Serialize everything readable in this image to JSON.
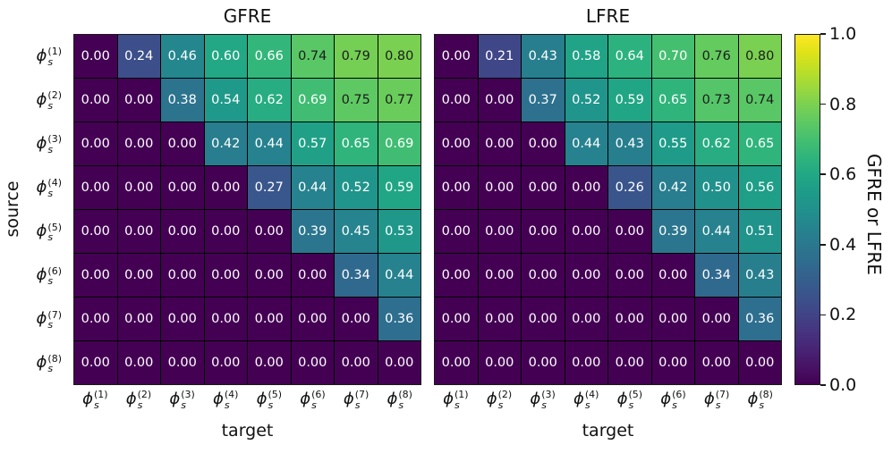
{
  "chart_data": [
    {
      "type": "heatmap",
      "title": "GFRE",
      "xlabel": "target",
      "ylabel": "source",
      "vmin": 0.0,
      "vmax": 1.0,
      "values": [
        [
          0.0,
          0.24,
          0.46,
          0.6,
          0.66,
          0.74,
          0.79,
          0.8
        ],
        [
          0.0,
          0.0,
          0.38,
          0.54,
          0.62,
          0.69,
          0.75,
          0.77
        ],
        [
          0.0,
          0.0,
          0.0,
          0.42,
          0.44,
          0.57,
          0.65,
          0.69
        ],
        [
          0.0,
          0.0,
          0.0,
          0.0,
          0.27,
          0.44,
          0.52,
          0.59
        ],
        [
          0.0,
          0.0,
          0.0,
          0.0,
          0.0,
          0.39,
          0.45,
          0.53
        ],
        [
          0.0,
          0.0,
          0.0,
          0.0,
          0.0,
          0.0,
          0.34,
          0.44
        ],
        [
          0.0,
          0.0,
          0.0,
          0.0,
          0.0,
          0.0,
          0.0,
          0.36
        ],
        [
          0.0,
          0.0,
          0.0,
          0.0,
          0.0,
          0.0,
          0.0,
          0.0
        ]
      ]
    },
    {
      "type": "heatmap",
      "title": "LFRE",
      "xlabel": "target",
      "vmin": 0.0,
      "vmax": 1.0,
      "values": [
        [
          0.0,
          0.21,
          0.43,
          0.58,
          0.64,
          0.7,
          0.76,
          0.8
        ],
        [
          0.0,
          0.0,
          0.37,
          0.52,
          0.59,
          0.65,
          0.73,
          0.74
        ],
        [
          0.0,
          0.0,
          0.0,
          0.44,
          0.43,
          0.55,
          0.62,
          0.65
        ],
        [
          0.0,
          0.0,
          0.0,
          0.0,
          0.26,
          0.42,
          0.5,
          0.56
        ],
        [
          0.0,
          0.0,
          0.0,
          0.0,
          0.0,
          0.39,
          0.44,
          0.51
        ],
        [
          0.0,
          0.0,
          0.0,
          0.0,
          0.0,
          0.0,
          0.34,
          0.43
        ],
        [
          0.0,
          0.0,
          0.0,
          0.0,
          0.0,
          0.0,
          0.0,
          0.36
        ],
        [
          0.0,
          0.0,
          0.0,
          0.0,
          0.0,
          0.0,
          0.0,
          0.0
        ]
      ]
    }
  ],
  "axis_ticks": {
    "base": "ϕ",
    "sub": "s",
    "sups": [
      "(1)",
      "(2)",
      "(3)",
      "(4)",
      "(5)",
      "(6)",
      "(7)",
      "(8)"
    ]
  },
  "colorbar": {
    "label": "GFRE or LFRE",
    "colormap": "viridis",
    "ticks": [
      {
        "value": 0.0,
        "label": "0.0"
      },
      {
        "value": 0.2,
        "label": "0.2"
      },
      {
        "value": 0.4,
        "label": "0.4"
      },
      {
        "value": 0.6,
        "label": "0.6"
      },
      {
        "value": 0.8,
        "label": "0.8"
      },
      {
        "value": 1.0,
        "label": "1.0"
      }
    ],
    "stops": [
      "#440154",
      "#471365",
      "#482475",
      "#463480",
      "#414487",
      "#3b528b",
      "#355f8d",
      "#2f6c8e",
      "#2a788e",
      "#25848e",
      "#21918c",
      "#1e9c89",
      "#22a884",
      "#2fb47c",
      "#44bf70",
      "#5ec962",
      "#7ad151",
      "#9bd93c",
      "#bddf26",
      "#dfe318",
      "#fde725"
    ]
  },
  "annotation": {
    "decimals": 2,
    "light_text": "#ffffff",
    "dark_text": "#1c1c1c",
    "dark_text_threshold": 0.72
  },
  "colors": {
    "background": "#ffffff",
    "grid_line": "#000000",
    "frame": "#1a1a1a",
    "text": "#111111"
  }
}
